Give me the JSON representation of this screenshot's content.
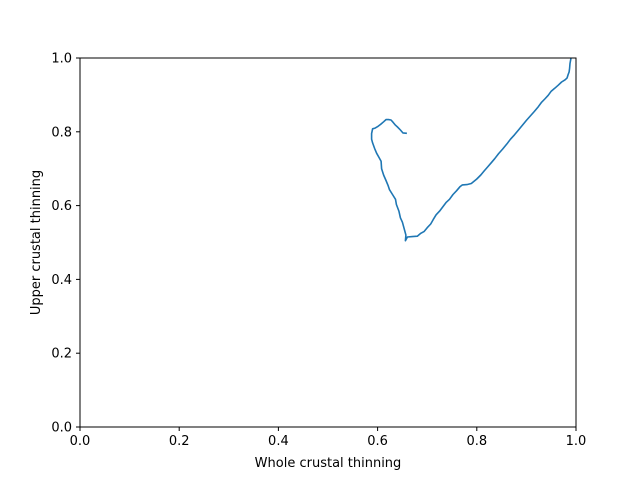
{
  "chart_data": {
    "type": "line",
    "title": "",
    "xlabel": "Whole crustal thinning",
    "ylabel": "Upper crustal thinning",
    "xlim": [
      0.0,
      1.0
    ],
    "ylim": [
      0.0,
      1.0
    ],
    "xticks": [
      "0.0",
      "0.2",
      "0.4",
      "0.6",
      "0.8",
      "1.0"
    ],
    "yticks": [
      "0.0",
      "0.2",
      "0.4",
      "0.6",
      "0.8",
      "1.0"
    ],
    "grid": false,
    "series": [
      {
        "color": "#1f77b4",
        "x": [
          0.659,
          0.651,
          0.646,
          0.641,
          0.636,
          0.631,
          0.627,
          0.622,
          0.617,
          0.612,
          0.606,
          0.601,
          0.595,
          0.59,
          0.588,
          0.588,
          0.59,
          0.594,
          0.598,
          0.603,
          0.607,
          0.608,
          0.612,
          0.617,
          0.621,
          0.624,
          0.63,
          0.636,
          0.638,
          0.643,
          0.646,
          0.65,
          0.653,
          0.657,
          0.656,
          0.66,
          0.67,
          0.68,
          0.687,
          0.694,
          0.7,
          0.707,
          0.712,
          0.718,
          0.725,
          0.731,
          0.738,
          0.745,
          0.752,
          0.759,
          0.766,
          0.771,
          0.78,
          0.789,
          0.8,
          0.808,
          0.815,
          0.822,
          0.829,
          0.836,
          0.844,
          0.852,
          0.86,
          0.868,
          0.876,
          0.884,
          0.892,
          0.9,
          0.908,
          0.916,
          0.924,
          0.93,
          0.937,
          0.944,
          0.95,
          0.957,
          0.964,
          0.971,
          0.978,
          0.982,
          0.984,
          0.986,
          0.987,
          0.988,
          0.99
        ],
        "y": [
          0.796,
          0.797,
          0.805,
          0.812,
          0.818,
          0.826,
          0.832,
          0.833,
          0.833,
          0.827,
          0.82,
          0.815,
          0.81,
          0.808,
          0.795,
          0.78,
          0.77,
          0.755,
          0.742,
          0.73,
          0.72,
          0.7,
          0.683,
          0.668,
          0.655,
          0.643,
          0.63,
          0.617,
          0.603,
          0.585,
          0.567,
          0.555,
          0.54,
          0.52,
          0.505,
          0.515,
          0.516,
          0.517,
          0.525,
          0.53,
          0.54,
          0.55,
          0.562,
          0.575,
          0.585,
          0.596,
          0.608,
          0.617,
          0.63,
          0.64,
          0.651,
          0.656,
          0.657,
          0.66,
          0.672,
          0.683,
          0.694,
          0.705,
          0.716,
          0.727,
          0.741,
          0.753,
          0.766,
          0.78,
          0.792,
          0.805,
          0.818,
          0.831,
          0.843,
          0.855,
          0.868,
          0.879,
          0.889,
          0.899,
          0.91,
          0.918,
          0.926,
          0.935,
          0.941,
          0.946,
          0.955,
          0.962,
          0.972,
          0.985,
          1.0
        ]
      }
    ]
  }
}
